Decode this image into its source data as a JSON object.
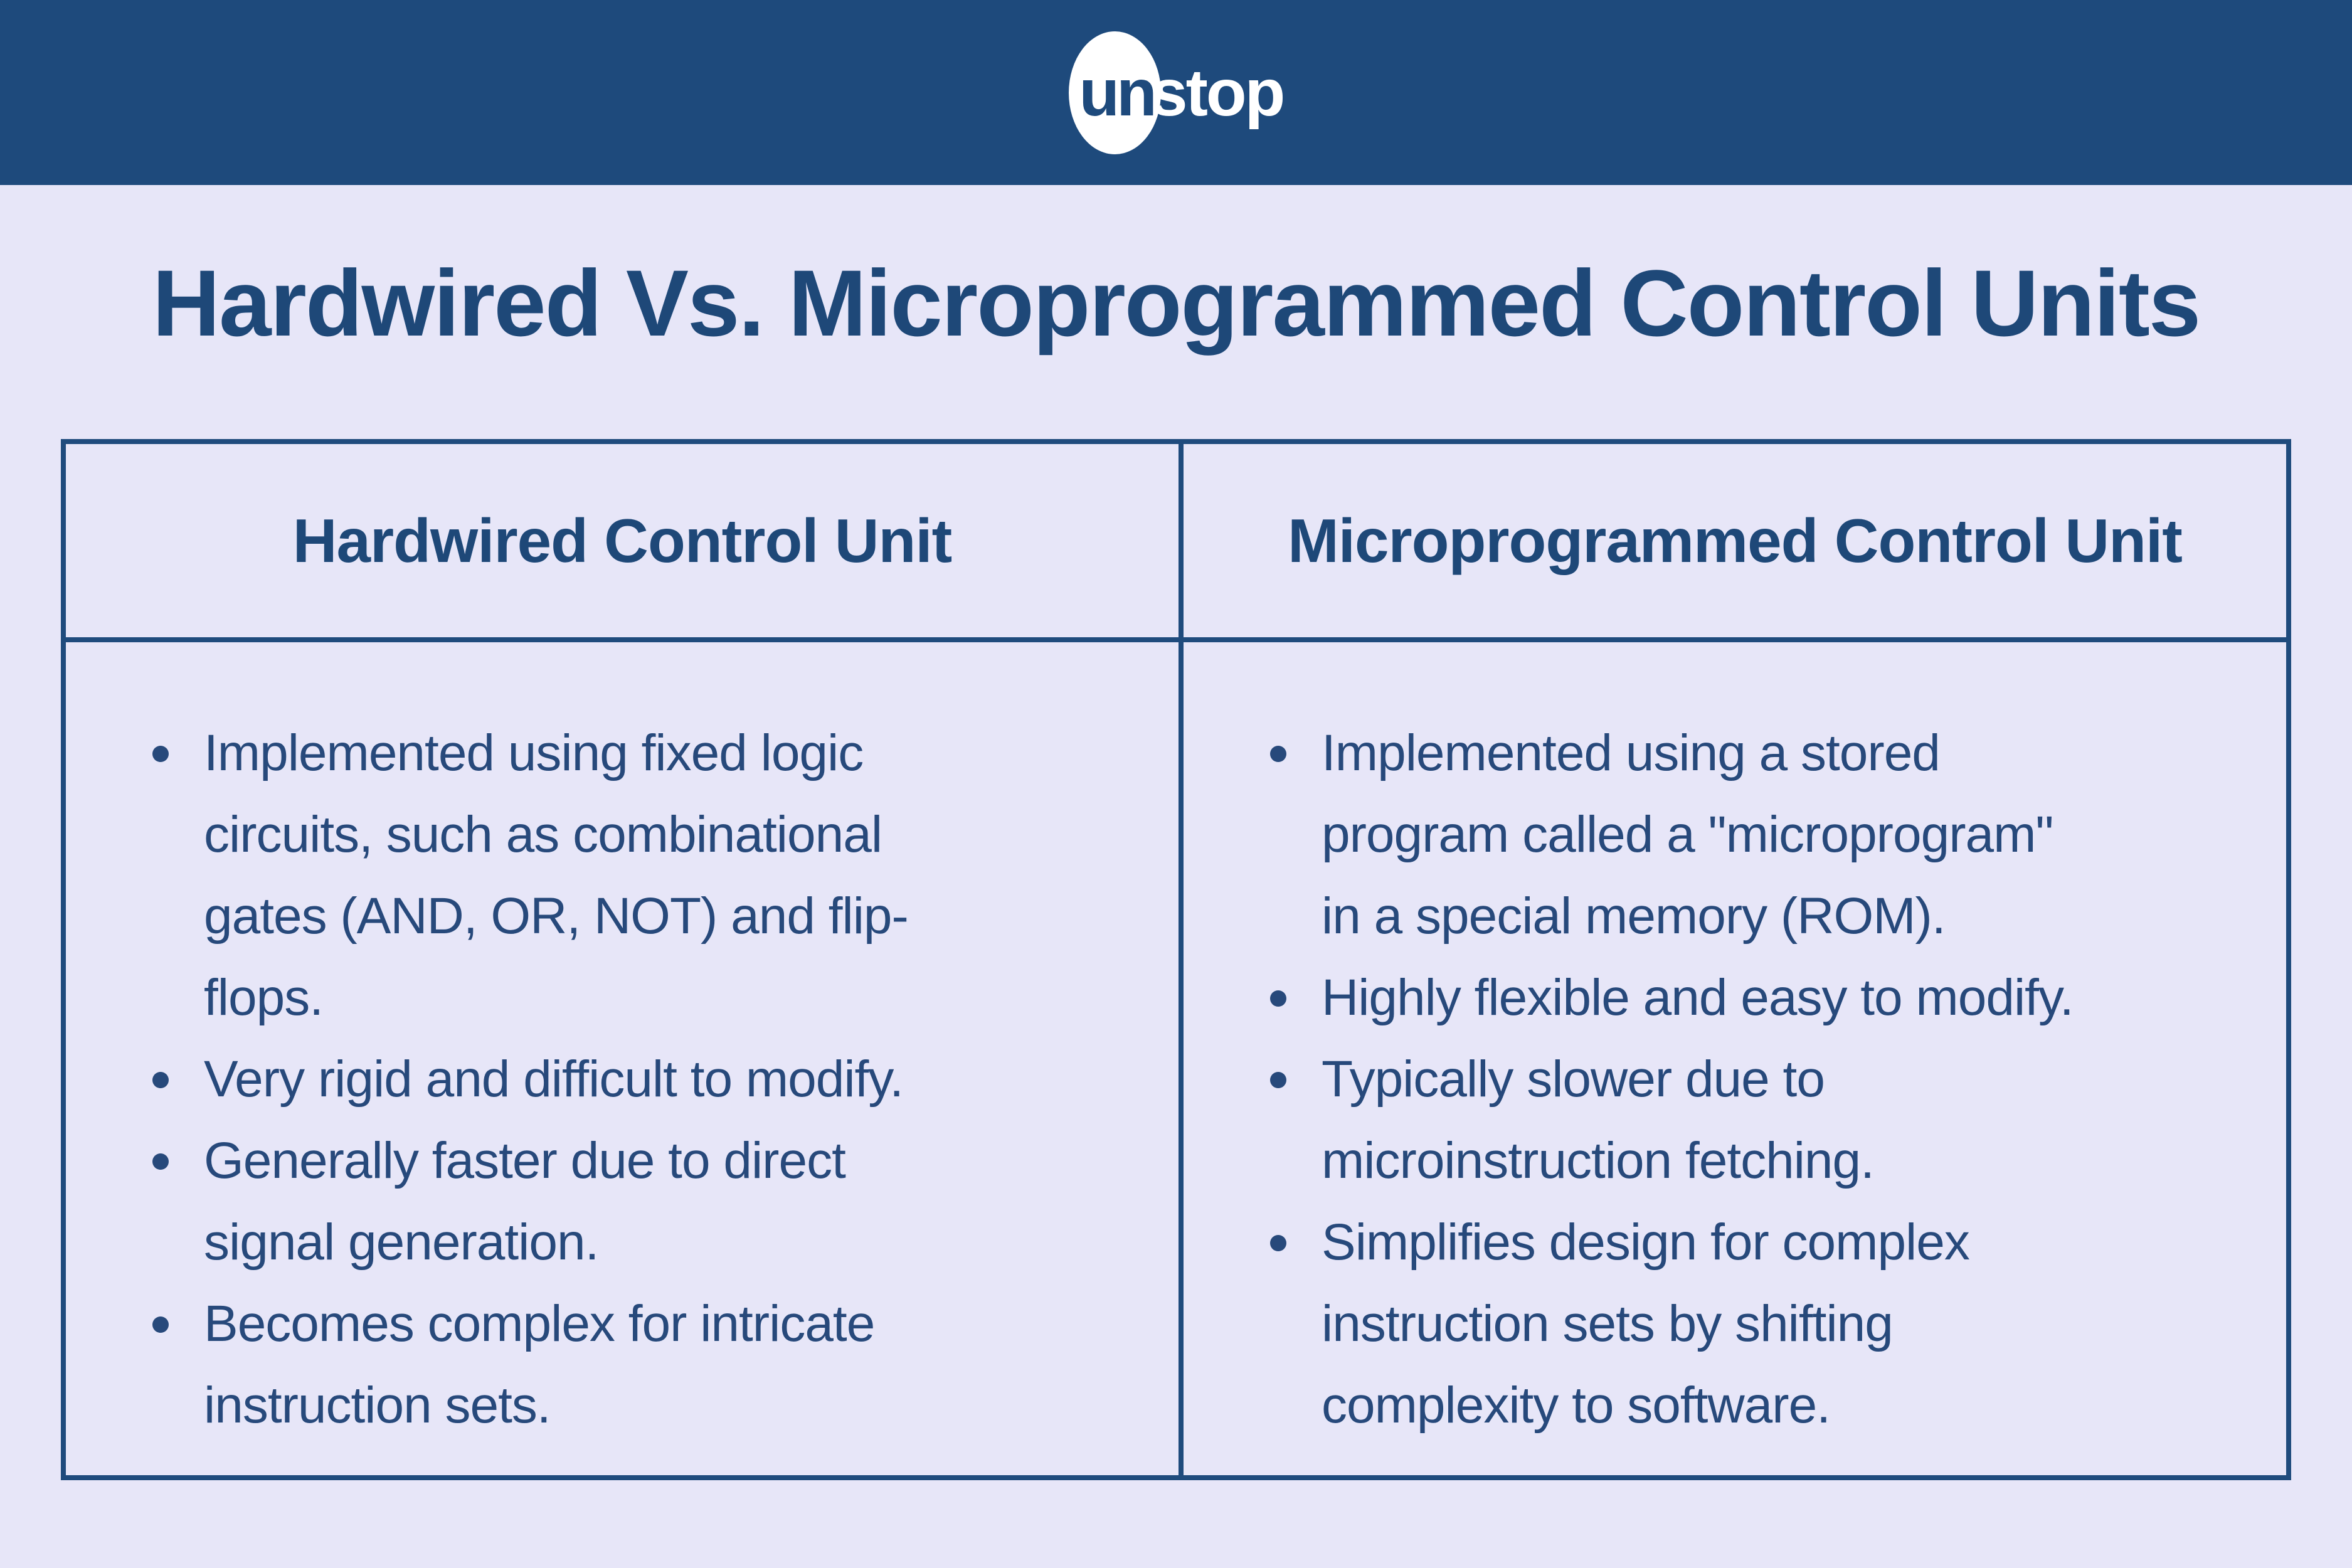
{
  "banner": {
    "logo_un": "un",
    "logo_stop": "stop"
  },
  "title": "Hardwired Vs. Microprogrammed Control Units",
  "table": {
    "columns": [
      {
        "header": "Hardwired Control Unit",
        "bullets": [
          "Implemented using fixed logic\ncircuits, such as combinational\ngates (AND, OR, NOT) and flip-\nflops.",
          "Very rigid and difficult to modify.",
          "Generally faster due to direct\nsignal generation.",
          "Becomes complex for intricate\ninstruction sets."
        ]
      },
      {
        "header": "Microprogrammed Control Unit",
        "bullets": [
          "Implemented using a stored\nprogram called a \"microprogram\"\nin a special memory (ROM).",
          "Highly flexible and easy to modify.",
          "Typically slower due to\nmicroinstruction fetching.",
          "Simplifies design for complex\ninstruction sets by shifting\ncomplexity to software."
        ]
      }
    ]
  },
  "colors": {
    "banner_bg": "#1e4a7c",
    "page_bg": "#e7e6f8",
    "border": "#1f4b7d",
    "heading_text": "#1e4878",
    "body_text": "#27497b",
    "logo_white": "#ffffff"
  }
}
